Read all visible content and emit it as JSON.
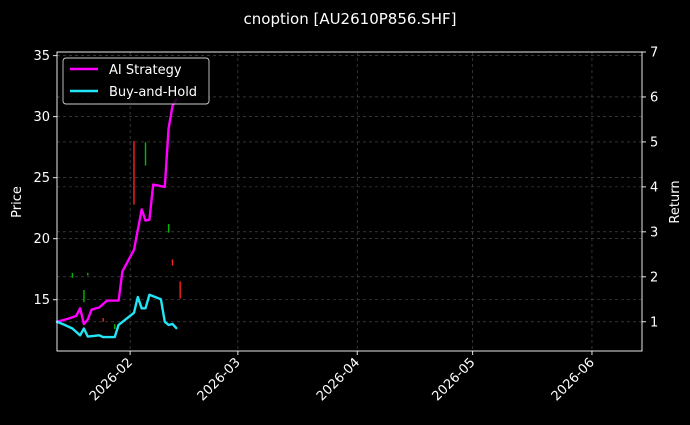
{
  "chart_data": {
    "type": "line",
    "title": "cnoption [AU2610P856.SHF]",
    "xlabel": "",
    "ylabel_left": "Price",
    "ylabel_right": "Return",
    "xlim": [
      "2026-01-13",
      "2026-06-14"
    ],
    "ylim_left": [
      10.8,
      35.3
    ],
    "ylim_right": [
      0.35,
      7.0
    ],
    "yticks_left": [
      15,
      20,
      25,
      30,
      35
    ],
    "yticks_right": [
      1,
      2,
      3,
      4,
      5,
      6,
      7
    ],
    "xticks": [
      "2026-02",
      "2026-03",
      "2026-04",
      "2026-05",
      "2026-06"
    ],
    "xtick_dates": [
      "2026-02-01",
      "2026-03-01",
      "2026-04-01",
      "2026-05-01",
      "2026-06-01"
    ],
    "grid": true,
    "legend_position": "top-left",
    "colors": {
      "background": "#000000",
      "ai_strategy": "#ff00ff",
      "buy_and_hold": "#22e5f5",
      "candle_up": "#00bb00",
      "candle_down": "#ff2020",
      "grid": "#555555"
    },
    "series": [
      {
        "name": "AI Strategy",
        "axis": "right",
        "points": [
          [
            "2026-01-13",
            1.0
          ],
          [
            "2026-01-16",
            1.07
          ],
          [
            "2026-01-18",
            1.13
          ],
          [
            "2026-01-19",
            1.3
          ],
          [
            "2026-01-20",
            0.95
          ],
          [
            "2026-01-21",
            1.05
          ],
          [
            "2026-01-22",
            1.27
          ],
          [
            "2026-01-24",
            1.32
          ],
          [
            "2026-01-26",
            1.47
          ],
          [
            "2026-01-28",
            1.47
          ],
          [
            "2026-01-29",
            1.47
          ],
          [
            "2026-01-30",
            2.12
          ],
          [
            "2026-02-02",
            2.6
          ],
          [
            "2026-02-04",
            3.5
          ],
          [
            "2026-02-05",
            3.25
          ],
          [
            "2026-02-06",
            3.27
          ],
          [
            "2026-02-07",
            4.05
          ],
          [
            "2026-02-10",
            4.0
          ],
          [
            "2026-02-11",
            5.3
          ],
          [
            "2026-02-12",
            5.8
          ],
          [
            "2026-02-13",
            5.95
          ]
        ]
      },
      {
        "name": "Buy-and-Hold",
        "axis": "right",
        "points": [
          [
            "2026-01-13",
            1.0
          ],
          [
            "2026-01-15",
            0.93
          ],
          [
            "2026-01-17",
            0.85
          ],
          [
            "2026-01-19",
            0.7
          ],
          [
            "2026-01-20",
            0.85
          ],
          [
            "2026-01-21",
            0.67
          ],
          [
            "2026-01-24",
            0.7
          ],
          [
            "2026-01-25",
            0.66
          ],
          [
            "2026-01-28",
            0.66
          ],
          [
            "2026-01-29",
            0.93
          ],
          [
            "2026-02-02",
            1.2
          ],
          [
            "2026-02-03",
            1.55
          ],
          [
            "2026-02-04",
            1.3
          ],
          [
            "2026-02-05",
            1.3
          ],
          [
            "2026-02-06",
            1.6
          ],
          [
            "2026-02-09",
            1.5
          ],
          [
            "2026-02-10",
            1.0
          ],
          [
            "2026-02-11",
            0.93
          ],
          [
            "2026-02-12",
            0.95
          ],
          [
            "2026-02-13",
            0.86
          ]
        ]
      }
    ],
    "candles": [
      {
        "date": "2026-01-17",
        "low": 16.8,
        "high": 17.2,
        "dir": "up"
      },
      {
        "date": "2026-01-20",
        "low": 14.8,
        "high": 15.8,
        "dir": "up"
      },
      {
        "date": "2026-01-21",
        "low": 17.0,
        "high": 17.2,
        "dir": "up"
      },
      {
        "date": "2026-01-25",
        "low": 13.2,
        "high": 13.5,
        "dir": "down"
      },
      {
        "date": "2026-01-28",
        "low": 12.6,
        "high": 13.0,
        "dir": "up"
      },
      {
        "date": "2026-02-02",
        "low": 22.8,
        "high": 28.0,
        "dir": "down"
      },
      {
        "date": "2026-02-05",
        "low": 26.0,
        "high": 27.9,
        "dir": "up"
      },
      {
        "date": "2026-02-11",
        "low": 20.5,
        "high": 21.2,
        "dir": "up"
      },
      {
        "date": "2026-02-12",
        "low": 17.8,
        "high": 18.3,
        "dir": "down"
      },
      {
        "date": "2026-02-14",
        "low": 15.1,
        "high": 16.5,
        "dir": "down"
      }
    ]
  }
}
